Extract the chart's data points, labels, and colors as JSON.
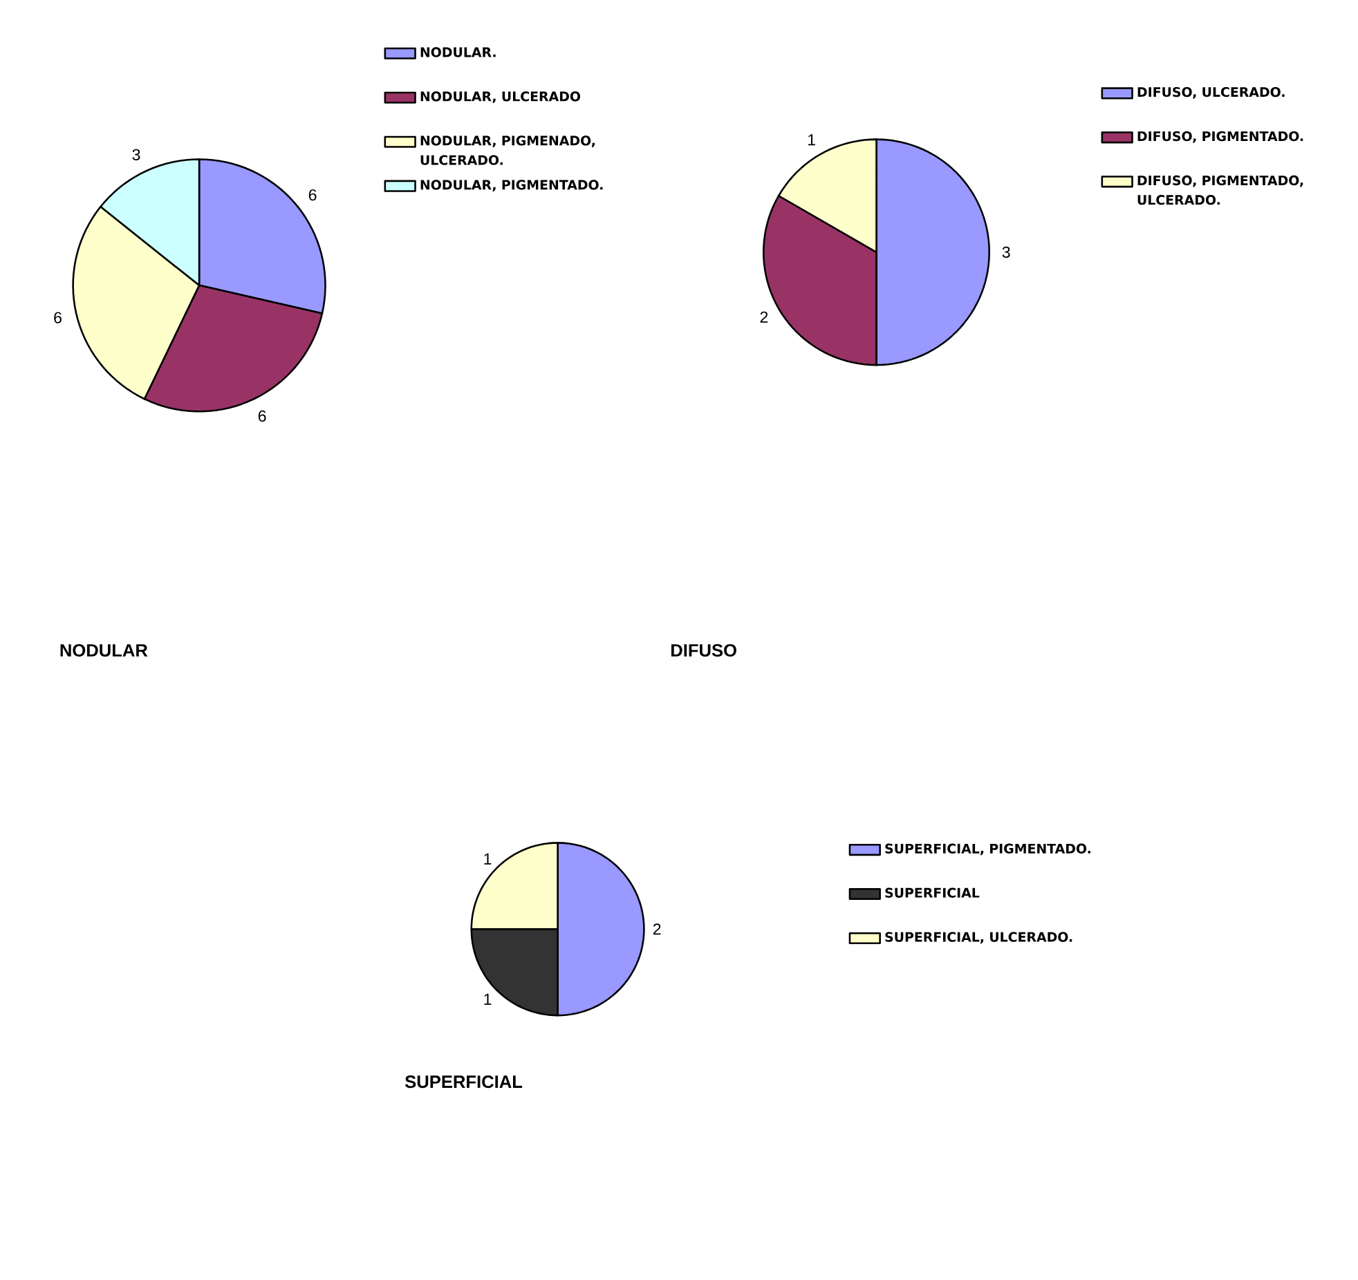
{
  "chart_data": [
    {
      "type": "pie",
      "title": "NODULAR",
      "categories": [
        "NODULAR.",
        "NODULAR, ULCERADO",
        "NODULAR, PIGMENADO, ULCERADO.",
        "NODULAR, PIGMENTADO."
      ],
      "values": [
        6,
        6,
        6,
        3
      ],
      "colors": [
        "#9999ff",
        "#993366",
        "#ffffcc",
        "#ccffff"
      ],
      "data_labels": true,
      "legend": "right"
    },
    {
      "type": "pie",
      "title": "DIFUSO",
      "categories": [
        "DIFUSO, ULCERADO.",
        "DIFUSO, PIGMENTADO.",
        "DIFUSO, PIGMENTADO, ULCERADO."
      ],
      "values": [
        3,
        2,
        1
      ],
      "colors": [
        "#9999ff",
        "#993366",
        "#ffffcc"
      ],
      "data_labels": true,
      "legend": "right"
    },
    {
      "type": "pie",
      "title": "SUPERFICIAL",
      "categories": [
        "SUPERFICIAL, PIGMENTADO.",
        "SUPERFICIAL",
        "SUPERFICIAL, ULCERADO."
      ],
      "values": [
        2,
        1,
        1
      ],
      "colors": [
        "#9999ff",
        "#333333",
        "#ffffcc"
      ],
      "data_labels": true,
      "legend": "right"
    }
  ]
}
